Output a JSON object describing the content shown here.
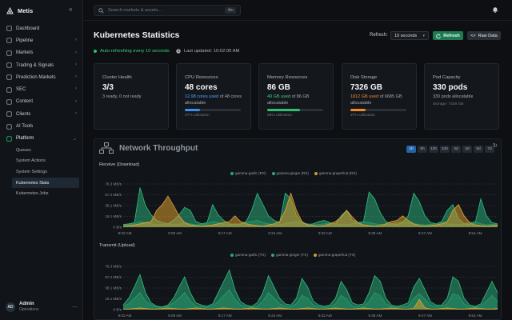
{
  "app": {
    "name": "Metis",
    "collapse_icon": "«"
  },
  "sidebar": {
    "items": [
      {
        "label": "Dashboard",
        "icon": "grid-icon",
        "chevron": false
      },
      {
        "label": "Pipeline",
        "icon": "funnel-icon",
        "chevron": true
      },
      {
        "label": "Markets",
        "icon": "chart-icon",
        "chevron": true
      },
      {
        "label": "Trading & Signals",
        "icon": "bolt-icon",
        "chevron": true
      },
      {
        "label": "Prediction Markets",
        "icon": "target-icon",
        "chevron": true
      },
      {
        "label": "SEC",
        "icon": "building-icon",
        "chevron": true
      },
      {
        "label": "Content",
        "icon": "file-icon",
        "chevron": true
      },
      {
        "label": "Clients",
        "icon": "users-icon",
        "chevron": true
      },
      {
        "label": "AI Tools",
        "icon": "sparkle-icon",
        "chevron": false
      },
      {
        "label": "Platform",
        "icon": "server-icon",
        "chevron": true,
        "open": true
      }
    ],
    "sub_items": [
      {
        "label": "Queues",
        "active": false
      },
      {
        "label": "System Actions",
        "active": false
      },
      {
        "label": "System Settings",
        "active": false
      },
      {
        "label": "Kubernetes Stats",
        "active": true
      },
      {
        "label": "Kubernetes Jobs",
        "active": false
      }
    ],
    "user": {
      "initials": "AD",
      "name": "Admin",
      "role": "Operations",
      "more": "⋯"
    }
  },
  "topbar": {
    "search_placeholder": "Search markets & assets...",
    "shortcut": "⌘K"
  },
  "header": {
    "title": "Kubernetes Statistics",
    "refresh_label": "Refresh:",
    "refresh_value": "10 seconds",
    "refresh_button": "Refresh",
    "raw_button": "Raw Data",
    "status": "Auto-refreshing every 10 seconds",
    "updated": "Last updated: 10:02:05 AM"
  },
  "cards": [
    {
      "label": "Cluster Health",
      "value": "3/3",
      "sub": "3 ready, 0 not ready"
    },
    {
      "label": "CPU Resources",
      "value": "48 cores",
      "sub_hl": "12.98 cores used",
      "sub_rest": " of 48 cores allocatable",
      "util": "27% utilization",
      "pct": 0.27,
      "color": "#3b8ef0",
      "hl_class": "hl-blue"
    },
    {
      "label": "Memory Resources",
      "value": "86 GB",
      "sub_hl": "49 GB used",
      "sub_rest": " of 86 GB allocatable",
      "util": "58% utilization",
      "pct": 0.58,
      "color": "#2fbf71",
      "hl_class": "hl-green"
    },
    {
      "label": "Disk Storage",
      "value": "7326 GB",
      "sub_hl": "1812 GB used",
      "sub_rest": " of 6685 GB allocatable",
      "util": "27% utilization",
      "pct": 0.27,
      "color": "#f08a24",
      "hl_class": "hl-orange"
    },
    {
      "label": "Pod Capacity",
      "value": "330 pods",
      "sub": "330 pods allocatable",
      "util": "Storage: 7326 GB"
    }
  ],
  "network": {
    "title": "Network Throughput",
    "refresh_icon": "↻",
    "ranges": [
      {
        "label": "1h",
        "active": true
      },
      {
        "label": "6h"
      },
      {
        "label": "12h"
      },
      {
        "label": "24h"
      },
      {
        "label": "2d"
      },
      {
        "label": "3d"
      },
      {
        "label": "5d"
      },
      {
        "label": "7d"
      }
    ],
    "colors": {
      "garlic": "#2aa876",
      "ginger": "#2aa876",
      "grapefruit": "#d89a2c"
    },
    "legend_rx": [
      "gamma-garlic (RX)",
      "gamma-ginger (RX)",
      "gamma-grapefruit (RX)"
    ],
    "legend_tx": [
      "gamma-garlic (TX)",
      "gamma-ginger (TX)",
      "gamma-grapefruit (TX)"
    ],
    "receive_title": "Receive (Download)",
    "transmit_title": "Transmit (Upload)"
  },
  "chart_data": [
    {
      "type": "area",
      "title": "Receive (Download)",
      "y_ticks": [
        "76.3 MB/s",
        "57.2 MB/s",
        "38.1 MB/s",
        "19.1 MB/s",
        "0 B/s"
      ],
      "ylim": [
        0,
        76.3
      ],
      "x_ticks": [
        "9:02 AM",
        "9:09 AM",
        "9:17 AM",
        "9:24 AM",
        "9:32 AM",
        "9:39 AM",
        "9:47 AM",
        "9:54 AM"
      ],
      "series": [
        {
          "name": "gamma-garlic (RX)",
          "values": [
            5,
            6,
            8,
            70,
            38,
            22,
            12,
            8,
            6,
            12,
            22,
            35,
            30,
            10,
            6,
            8,
            40,
            22,
            12,
            6,
            5,
            6,
            10,
            30,
            60,
            40,
            20,
            12,
            8,
            60,
            50,
            20,
            8,
            5,
            6,
            10,
            12,
            8,
            6,
            20,
            30,
            12,
            8,
            10,
            62,
            50,
            26,
            10,
            6,
            5,
            8,
            20,
            60,
            45,
            20,
            8,
            6,
            10,
            30,
            40,
            15,
            6,
            5,
            8,
            50,
            20,
            8,
            6
          ]
        },
        {
          "name": "gamma-ginger (RX)",
          "values": [
            4,
            5,
            6,
            10,
            8,
            6,
            4,
            5,
            6,
            4,
            5,
            8,
            6,
            4,
            5,
            6,
            10,
            8,
            5,
            4,
            6,
            5,
            8,
            10,
            12,
            8,
            6,
            5,
            4,
            6,
            8,
            10,
            8,
            6,
            4,
            5,
            6,
            8,
            6,
            5,
            4,
            6,
            8,
            10,
            8,
            6,
            5,
            4,
            6,
            8,
            10,
            8,
            6,
            5,
            4,
            5,
            6,
            8,
            6,
            5,
            4,
            6,
            8,
            10,
            6,
            4,
            5,
            6
          ]
        },
        {
          "name": "gamma-grapefruit (RX)",
          "values": [
            2,
            3,
            4,
            6,
            8,
            10,
            30,
            40,
            55,
            38,
            20,
            8,
            4,
            3,
            2,
            3,
            4,
            6,
            8,
            10,
            20,
            10,
            6,
            4,
            3,
            2,
            4,
            6,
            10,
            30,
            60,
            30,
            10,
            4,
            3,
            2,
            3,
            6,
            10,
            18,
            30,
            18,
            8,
            4,
            3,
            2,
            3,
            6,
            10,
            12,
            20,
            12,
            6,
            3,
            2,
            3,
            4,
            6,
            10,
            30,
            40,
            20,
            8,
            4,
            3,
            2,
            3,
            4
          ]
        }
      ]
    },
    {
      "type": "area",
      "title": "Transmit (Upload)",
      "y_ticks": [
        "76.3 MB/s",
        "57.2 MB/s",
        "38.1 MB/s",
        "19.1 MB/s",
        "0 B/s"
      ],
      "ylim": [
        0,
        76.3
      ],
      "x_ticks": [
        "9:02 AM",
        "9:09 AM",
        "9:17 AM",
        "9:24 AM",
        "9:32 AM",
        "9:39 AM",
        "9:47 AM",
        "9:54 AM"
      ],
      "series": [
        {
          "name": "gamma-garlic (TX)",
          "values": [
            8,
            20,
            40,
            62,
            30,
            12,
            6,
            5,
            8,
            20,
            40,
            58,
            30,
            12,
            8,
            6,
            10,
            30,
            50,
            70,
            35,
            14,
            8,
            6,
            12,
            30,
            60,
            40,
            20,
            10,
            8,
            20,
            55,
            40,
            15,
            8,
            6,
            8,
            20,
            50,
            35,
            12,
            8,
            10,
            30,
            60,
            50,
            20,
            8,
            6,
            8,
            12,
            40,
            55,
            35,
            14,
            8,
            8,
            20,
            58,
            50,
            20,
            8,
            6,
            10,
            30,
            50,
            30
          ]
        },
        {
          "name": "gamma-ginger (TX)",
          "values": [
            6,
            10,
            20,
            30,
            15,
            8,
            5,
            4,
            6,
            12,
            20,
            30,
            15,
            6,
            5,
            4,
            6,
            14,
            25,
            35,
            18,
            8,
            5,
            4,
            6,
            15,
            30,
            20,
            10,
            6,
            5,
            10,
            25,
            20,
            8,
            5,
            4,
            5,
            10,
            25,
            18,
            6,
            5,
            6,
            14,
            30,
            25,
            10,
            5,
            4,
            5,
            6,
            20,
            28,
            18,
            8,
            5,
            5,
            10,
            28,
            25,
            10,
            5,
            4,
            6,
            15,
            25,
            15
          ]
        },
        {
          "name": "gamma-grapefruit (TX)",
          "values": [
            1,
            1,
            2,
            3,
            2,
            1,
            1,
            2,
            3,
            2,
            1,
            1,
            2,
            3,
            2,
            1,
            1,
            2,
            3,
            2,
            1,
            1,
            2,
            3,
            2,
            1,
            1,
            2,
            3,
            2,
            1,
            1,
            2,
            3,
            2,
            1,
            1,
            2,
            3,
            2,
            1,
            1,
            2,
            3,
            2,
            1,
            1,
            2,
            3,
            2,
            1,
            1,
            2,
            18,
            3,
            1,
            1,
            2,
            3,
            2,
            1,
            1,
            2,
            3,
            2,
            1,
            1,
            2
          ]
        }
      ]
    }
  ]
}
